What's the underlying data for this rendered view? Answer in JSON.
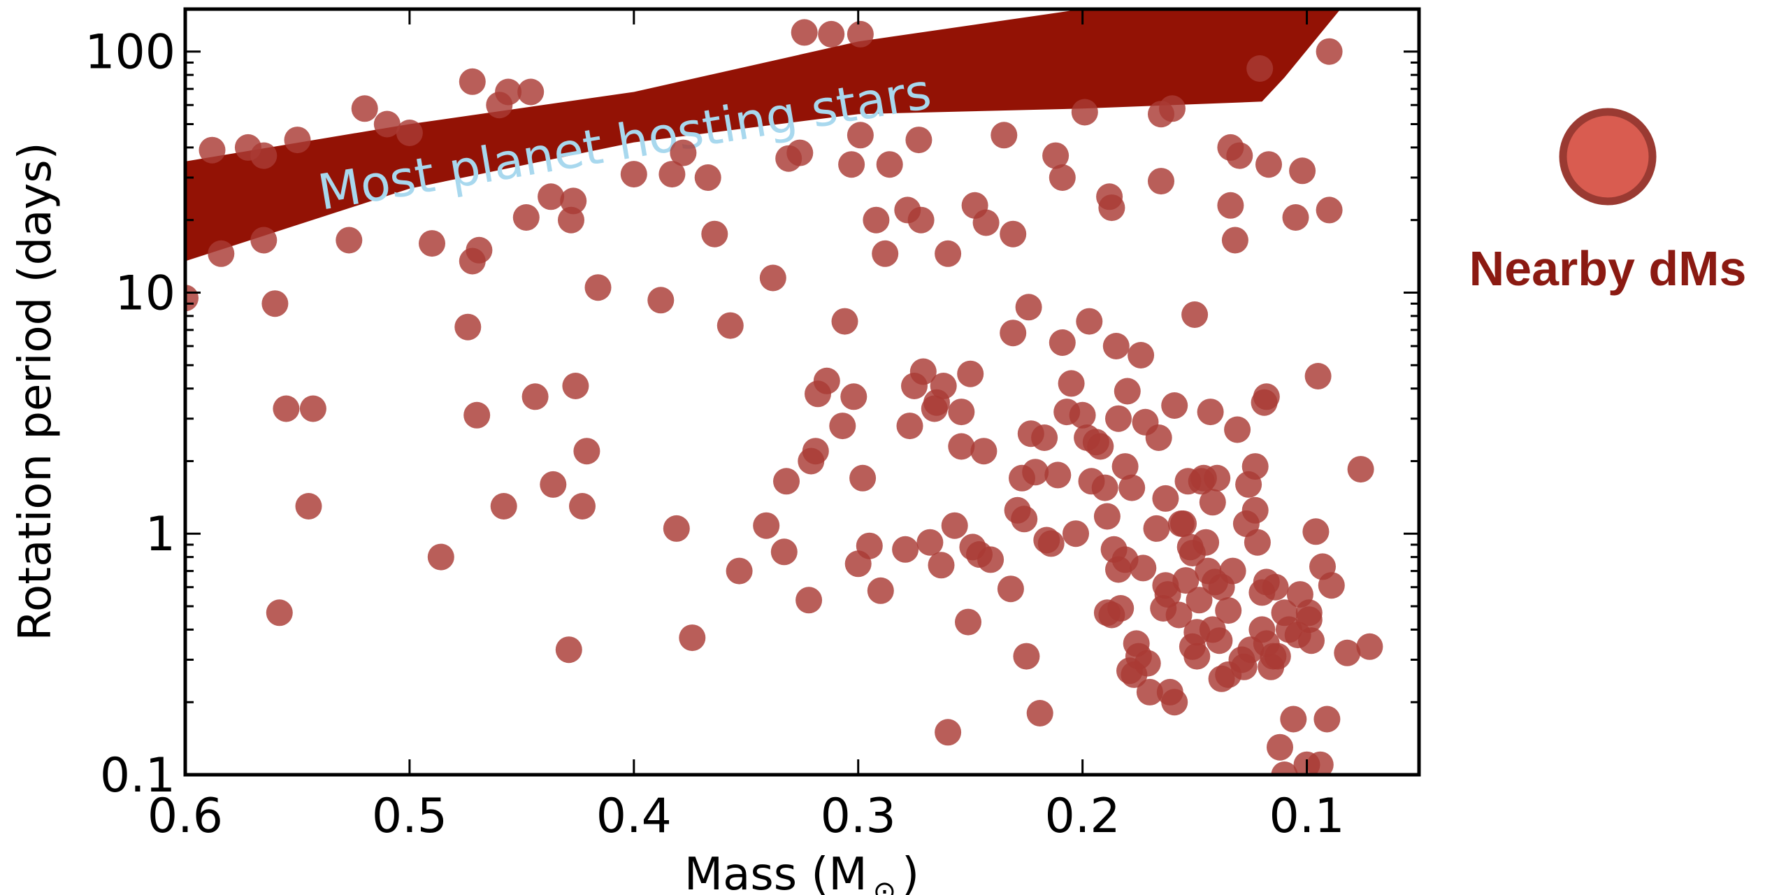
{
  "chart_data": {
    "type": "scatter",
    "xlabel": "Mass (M",
    "xlabel_symbol": "⊙",
    "xlabel_close": ")",
    "ylabel": "Rotation period (days)",
    "xlim": [
      0.6,
      0.05
    ],
    "ylim": [
      0.1,
      150
    ],
    "yscale": "log",
    "x_ticks": [
      0.6,
      0.5,
      0.4,
      0.3,
      0.2,
      0.1
    ],
    "x_tick_labels": [
      "0.6",
      "0.5",
      "0.4",
      "0.3",
      "0.2",
      "0.1"
    ],
    "y_ticks": [
      0.1,
      1,
      10,
      100
    ],
    "y_tick_labels": [
      "0.1",
      "1",
      "10",
      "100"
    ],
    "grid": false,
    "legend": {
      "placement": "right",
      "entries": [
        {
          "label": "Nearby dMs",
          "marker_color": "#d95c50",
          "edge_color": "#9a3a32"
        }
      ]
    },
    "point_color": "#a93a35",
    "band": {
      "label": "Most planet hosting stars",
      "color": "#931205",
      "upper": [
        [
          0.6,
          35
        ],
        [
          0.5,
          50
        ],
        [
          0.4,
          68
        ],
        [
          0.3,
          110
        ],
        [
          0.2,
          150
        ],
        [
          0.1,
          150
        ],
        [
          0.085,
          150
        ]
      ],
      "lower": [
        [
          0.085,
          150
        ],
        [
          0.11,
          78
        ],
        [
          0.12,
          62
        ],
        [
          0.2,
          58
        ],
        [
          0.3,
          55
        ],
        [
          0.4,
          42
        ],
        [
          0.5,
          27
        ],
        [
          0.6,
          13.5
        ]
      ]
    },
    "series": [
      {
        "points": [
          [
            0.6,
            9.5
          ],
          [
            0.588,
            39
          ],
          [
            0.584,
            14.5
          ],
          [
            0.572,
            40
          ],
          [
            0.565,
            37
          ],
          [
            0.565,
            16.5
          ],
          [
            0.56,
            9
          ],
          [
            0.558,
            0.47
          ],
          [
            0.555,
            3.3
          ],
          [
            0.55,
            43
          ],
          [
            0.545,
            1.3
          ],
          [
            0.543,
            3.3
          ],
          [
            0.527,
            16.5
          ],
          [
            0.52,
            58
          ],
          [
            0.51,
            50
          ],
          [
            0.5,
            46
          ],
          [
            0.49,
            16
          ],
          [
            0.486,
            0.8
          ],
          [
            0.474,
            7.2
          ],
          [
            0.472,
            13.5
          ],
          [
            0.472,
            75
          ],
          [
            0.47,
            3.1
          ],
          [
            0.469,
            15
          ],
          [
            0.46,
            60
          ],
          [
            0.458,
            1.3
          ],
          [
            0.456,
            68
          ],
          [
            0.448,
            20.5
          ],
          [
            0.446,
            68
          ],
          [
            0.444,
            3.7
          ],
          [
            0.437,
            25
          ],
          [
            0.436,
            1.6
          ],
          [
            0.429,
            0.33
          ],
          [
            0.428,
            20
          ],
          [
            0.427,
            24
          ],
          [
            0.426,
            4.1
          ],
          [
            0.423,
            1.3
          ],
          [
            0.421,
            2.2
          ],
          [
            0.416,
            10.5
          ],
          [
            0.4,
            31
          ],
          [
            0.388,
            9.3
          ],
          [
            0.383,
            31
          ],
          [
            0.381,
            1.05
          ],
          [
            0.378,
            38
          ],
          [
            0.374,
            0.37
          ],
          [
            0.367,
            30
          ],
          [
            0.364,
            17.5
          ],
          [
            0.357,
            7.3
          ],
          [
            0.353,
            0.7
          ],
          [
            0.341,
            1.08
          ],
          [
            0.338,
            11.5
          ],
          [
            0.333,
            0.84
          ],
          [
            0.332,
            1.65
          ],
          [
            0.331,
            36
          ],
          [
            0.326,
            38
          ],
          [
            0.324,
            120
          ],
          [
            0.322,
            0.53
          ],
          [
            0.321,
            2.0
          ],
          [
            0.319,
            2.2
          ],
          [
            0.318,
            3.8
          ],
          [
            0.314,
            4.3
          ],
          [
            0.312,
            118
          ],
          [
            0.307,
            2.8
          ],
          [
            0.306,
            7.6
          ],
          [
            0.303,
            34
          ],
          [
            0.302,
            3.7
          ],
          [
            0.3,
            0.75
          ],
          [
            0.299,
            45
          ],
          [
            0.299,
            118
          ],
          [
            0.298,
            1.7
          ],
          [
            0.295,
            0.89
          ],
          [
            0.292,
            20
          ],
          [
            0.29,
            0.58
          ],
          [
            0.288,
            14.5
          ],
          [
            0.286,
            34
          ],
          [
            0.279,
            0.86
          ],
          [
            0.278,
            22
          ],
          [
            0.277,
            2.8
          ],
          [
            0.275,
            4.1
          ],
          [
            0.273,
            43
          ],
          [
            0.272,
            20
          ],
          [
            0.271,
            4.7
          ],
          [
            0.268,
            0.92
          ],
          [
            0.266,
            3.3
          ],
          [
            0.265,
            3.5
          ],
          [
            0.263,
            0.74
          ],
          [
            0.262,
            4.1
          ],
          [
            0.26,
            14.5
          ],
          [
            0.26,
            0.15
          ],
          [
            0.257,
            1.08
          ],
          [
            0.254,
            2.3
          ],
          [
            0.254,
            3.2
          ],
          [
            0.251,
            0.43
          ],
          [
            0.25,
            4.6
          ],
          [
            0.249,
            0.88
          ],
          [
            0.248,
            23
          ],
          [
            0.246,
            0.82
          ],
          [
            0.244,
            2.2
          ],
          [
            0.243,
            19.5
          ],
          [
            0.241,
            0.78
          ],
          [
            0.235,
            45
          ],
          [
            0.232,
            0.59
          ],
          [
            0.231,
            17.5
          ],
          [
            0.231,
            6.8
          ],
          [
            0.229,
            1.25
          ],
          [
            0.227,
            1.7
          ],
          [
            0.226,
            1.15
          ],
          [
            0.225,
            0.31
          ],
          [
            0.224,
            8.7
          ],
          [
            0.223,
            2.6
          ],
          [
            0.221,
            1.8
          ],
          [
            0.219,
            0.18
          ],
          [
            0.217,
            2.5
          ],
          [
            0.216,
            0.94
          ],
          [
            0.214,
            0.91
          ],
          [
            0.212,
            37
          ],
          [
            0.211,
            1.75
          ],
          [
            0.209,
            30
          ],
          [
            0.209,
            6.2
          ],
          [
            0.207,
            3.2
          ],
          [
            0.205,
            4.2
          ],
          [
            0.203,
            1.0
          ],
          [
            0.2,
            3.1
          ],
          [
            0.199,
            56
          ],
          [
            0.198,
            2.5
          ],
          [
            0.197,
            7.6
          ],
          [
            0.196,
            1.65
          ],
          [
            0.194,
            2.4
          ],
          [
            0.192,
            2.3
          ],
          [
            0.19,
            1.55
          ],
          [
            0.189,
            0.47
          ],
          [
            0.189,
            1.18
          ],
          [
            0.188,
            25
          ],
          [
            0.187,
            0.46
          ],
          [
            0.187,
            22.5
          ],
          [
            0.186,
            0.86
          ],
          [
            0.185,
            6.0
          ],
          [
            0.184,
            0.71
          ],
          [
            0.184,
            3.0
          ],
          [
            0.183,
            0.49
          ],
          [
            0.181,
            1.9
          ],
          [
            0.181,
            0.78
          ],
          [
            0.18,
            3.9
          ],
          [
            0.179,
            0.27
          ],
          [
            0.178,
            1.55
          ],
          [
            0.177,
            0.26
          ],
          [
            0.176,
            0.35
          ],
          [
            0.175,
            0.31
          ],
          [
            0.174,
            5.5
          ],
          [
            0.173,
            0.72
          ],
          [
            0.172,
            2.9
          ],
          [
            0.171,
            0.29
          ],
          [
            0.17,
            0.22
          ],
          [
            0.167,
            1.05
          ],
          [
            0.166,
            2.5
          ],
          [
            0.165,
            55
          ],
          [
            0.165,
            29
          ],
          [
            0.164,
            0.49
          ],
          [
            0.163,
            0.61
          ],
          [
            0.163,
            1.4
          ],
          [
            0.162,
            0.56
          ],
          [
            0.161,
            0.22
          ],
          [
            0.16,
            58
          ],
          [
            0.159,
            3.4
          ],
          [
            0.159,
            0.2
          ],
          [
            0.157,
            0.46
          ],
          [
            0.156,
            1.1
          ],
          [
            0.155,
            1.1
          ],
          [
            0.154,
            0.64
          ],
          [
            0.153,
            1.65
          ],
          [
            0.152,
            0.88
          ],
          [
            0.151,
            0.83
          ],
          [
            0.151,
            0.34
          ],
          [
            0.15,
            8.1
          ],
          [
            0.149,
            0.31
          ],
          [
            0.149,
            0.39
          ],
          [
            0.148,
            0.53
          ],
          [
            0.147,
            1.65
          ],
          [
            0.146,
            1.7
          ],
          [
            0.145,
            0.92
          ],
          [
            0.144,
            0.7
          ],
          [
            0.143,
            3.2
          ],
          [
            0.142,
            0.4
          ],
          [
            0.142,
            1.35
          ],
          [
            0.141,
            0.63
          ],
          [
            0.14,
            1.7
          ],
          [
            0.139,
            0.36
          ],
          [
            0.138,
            0.6
          ],
          [
            0.138,
            0.25
          ],
          [
            0.135,
            0.48
          ],
          [
            0.135,
            0.26
          ],
          [
            0.134,
            23
          ],
          [
            0.134,
            40
          ],
          [
            0.133,
            0.7
          ],
          [
            0.132,
            16.5
          ],
          [
            0.131,
            2.7
          ],
          [
            0.13,
            37
          ],
          [
            0.129,
            0.3
          ],
          [
            0.128,
            0.28
          ],
          [
            0.127,
            1.1
          ],
          [
            0.126,
            1.6
          ],
          [
            0.125,
            0.33
          ],
          [
            0.123,
            1.25
          ],
          [
            0.123,
            1.9
          ],
          [
            0.122,
            0.92
          ],
          [
            0.121,
            85
          ],
          [
            0.12,
            0.4
          ],
          [
            0.12,
            0.57
          ],
          [
            0.119,
            3.5
          ],
          [
            0.118,
            3.7
          ],
          [
            0.118,
            0.63
          ],
          [
            0.118,
            0.35
          ],
          [
            0.117,
            34
          ],
          [
            0.116,
            0.28
          ],
          [
            0.115,
            0.31
          ],
          [
            0.114,
            0.6
          ],
          [
            0.113,
            0.31
          ],
          [
            0.112,
            0.13
          ],
          [
            0.11,
            0.47
          ],
          [
            0.11,
            0.1
          ],
          [
            0.108,
            0.4
          ],
          [
            0.106,
            0.17
          ],
          [
            0.105,
            20.5
          ],
          [
            0.104,
            0.38
          ],
          [
            0.103,
            0.56
          ],
          [
            0.102,
            32
          ],
          [
            0.1,
            0.11
          ],
          [
            0.099,
            0.47
          ],
          [
            0.099,
            0.44
          ],
          [
            0.098,
            0.36
          ],
          [
            0.096,
            1.02
          ],
          [
            0.095,
            4.5
          ],
          [
            0.094,
            0.11
          ],
          [
            0.093,
            0.73
          ],
          [
            0.091,
            0.17
          ],
          [
            0.09,
            100
          ],
          [
            0.09,
            22
          ],
          [
            0.089,
            0.61
          ],
          [
            0.082,
            0.32
          ],
          [
            0.076,
            1.85
          ],
          [
            0.072,
            0.34
          ]
        ]
      }
    ]
  }
}
